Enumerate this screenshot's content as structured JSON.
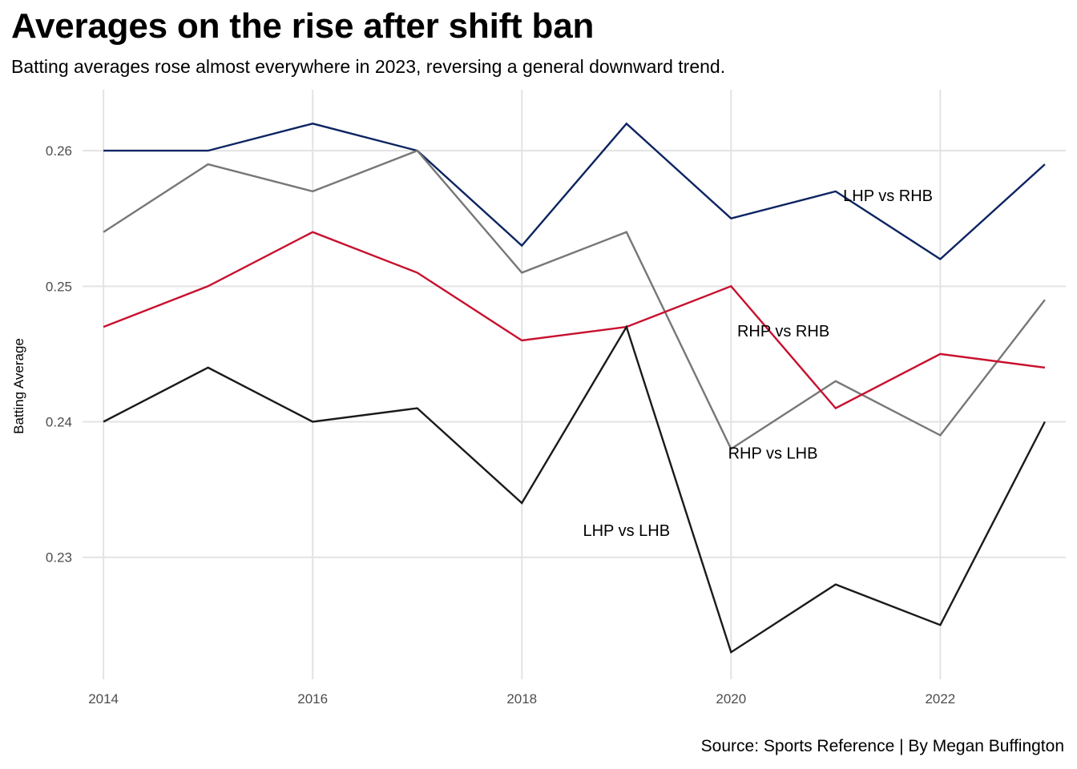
{
  "chart_data": {
    "type": "line",
    "title": "Averages on the rise after shift ban",
    "subtitle": "Batting averages rose almost everywhere in 2023, reversing a general downward trend.",
    "caption": "Source: Sports Reference | By Megan Buffington",
    "xlabel": "",
    "ylabel": "Batting Average",
    "x": [
      2014,
      2015,
      2016,
      2017,
      2018,
      2019,
      2020,
      2021,
      2022,
      2023
    ],
    "xlim": [
      2013.8,
      2023.2
    ],
    "ylim": [
      0.221,
      0.2645
    ],
    "x_ticks": [
      2014,
      2016,
      2018,
      2020,
      2022
    ],
    "y_ticks": [
      0.23,
      0.24,
      0.25,
      0.26
    ],
    "x_tick_labels": [
      "2014",
      "2016",
      "2018",
      "2020",
      "2022"
    ],
    "y_tick_labels": [
      "0.23",
      "0.24",
      "0.25",
      "0.26"
    ],
    "grid": true,
    "series": [
      {
        "name": "LHP vs RHB",
        "color": "#0c2461",
        "values": [
          0.26,
          0.26,
          0.262,
          0.26,
          0.253,
          0.262,
          0.255,
          0.257,
          0.252,
          0.259
        ],
        "label_at": [
          2021.5,
          0.2567
        ]
      },
      {
        "name": "RHP vs LHB",
        "color": "#777777",
        "values": [
          0.254,
          0.259,
          0.257,
          0.26,
          0.251,
          0.254,
          0.238,
          0.243,
          0.239,
          0.249
        ],
        "label_at": [
          2020.4,
          0.2377
        ]
      },
      {
        "name": "RHP vs RHB",
        "color": "#c8102e",
        "values": [
          0.247,
          0.25,
          0.254,
          0.251,
          0.246,
          0.247,
          0.25,
          0.241,
          0.245,
          0.244
        ],
        "label_at": [
          2020.5,
          0.2467
        ]
      },
      {
        "name": "LHP vs LHB",
        "color": "#1a1a1a",
        "values": [
          0.24,
          0.244,
          0.24,
          0.241,
          0.234,
          0.247,
          0.223,
          0.228,
          0.225,
          0.24
        ],
        "label_at": [
          2019.0,
          0.232
        ]
      }
    ]
  }
}
